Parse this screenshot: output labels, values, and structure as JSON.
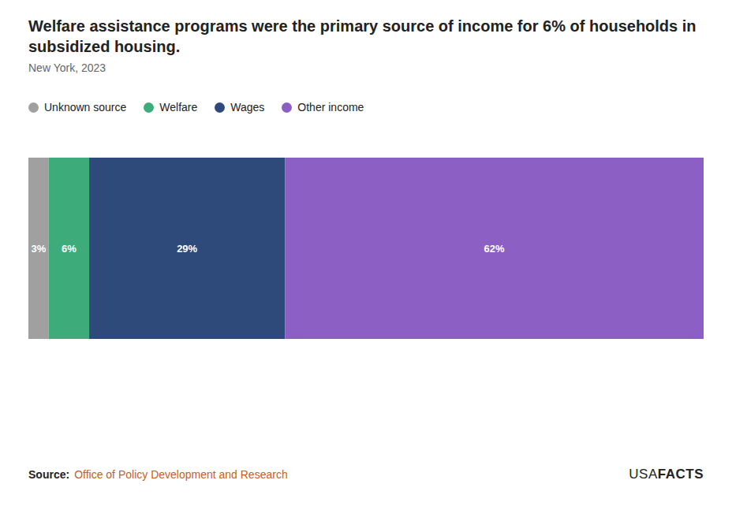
{
  "chart_data": {
    "type": "bar",
    "orientation": "horizontal",
    "stacked": true,
    "title": "Welfare assistance programs were the primary source of income for 6% of households in subsidized housing.",
    "subtitle": "New York, 2023",
    "categories": [
      null
    ],
    "series": [
      {
        "name": "Unknown source",
        "color": "#a0a0a0",
        "values": [
          3
        ],
        "value_labels": [
          "3%"
        ]
      },
      {
        "name": "Welfare",
        "color": "#3dab7a",
        "values": [
          6
        ],
        "value_labels": [
          "6%"
        ]
      },
      {
        "name": "Wages",
        "color": "#2d4a7a",
        "values": [
          29
        ],
        "value_labels": [
          "29%"
        ]
      },
      {
        "name": "Other income",
        "color": "#8b5fc4",
        "values": [
          62
        ],
        "value_labels": [
          "62%"
        ]
      }
    ],
    "xlim": [
      0,
      100
    ],
    "data_labels": true,
    "tick_labels": false,
    "grid": false,
    "legend": "top",
    "annotations": [
      "Source:",
      "Office of Policy Development and Research",
      "USA",
      "FACTS"
    ]
  }
}
